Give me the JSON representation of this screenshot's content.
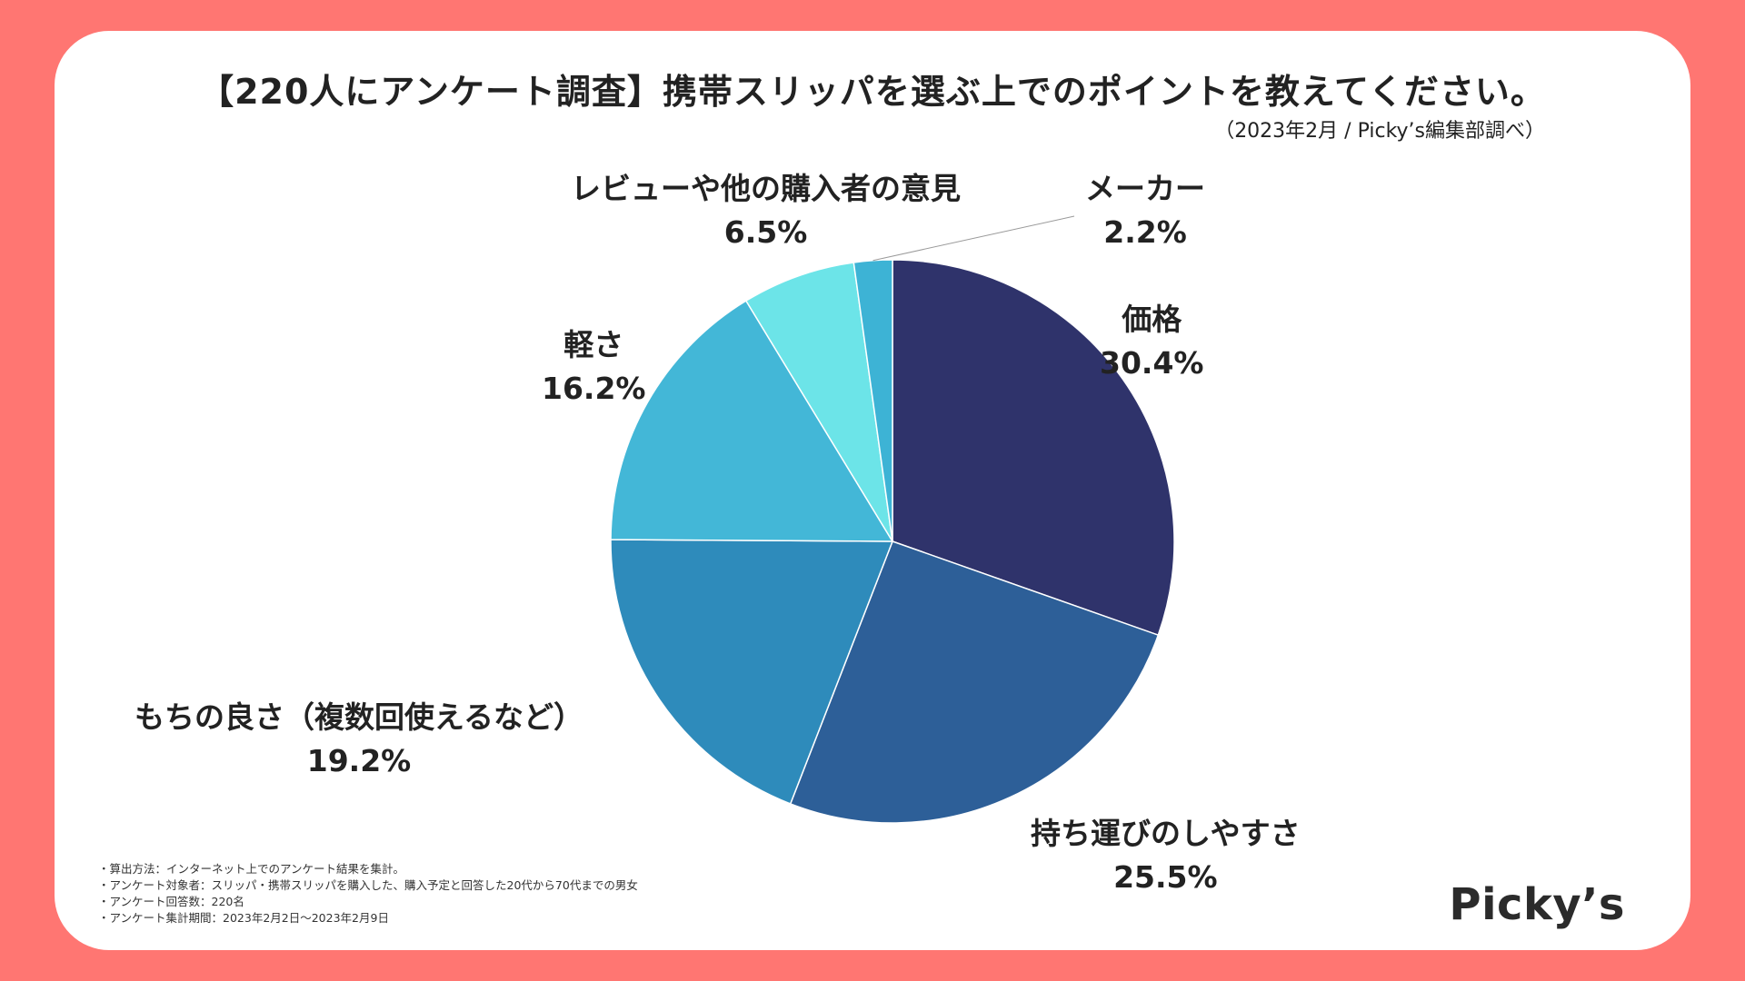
{
  "title": "【220人にアンケート調査】携帯スリッパを選ぶ上でのポイントを教えてください。",
  "subtitle": "（2023年2月 / Picky’s編集部調べ）",
  "chart_data": {
    "type": "pie",
    "title": "【220人にアンケート調査】携帯スリッパを選ぶ上でのポイントを教えてください。",
    "slices": [
      {
        "label": "価格",
        "value": 30.4,
        "value_text": "30.4%",
        "color": "#2f336b"
      },
      {
        "label": "持ち運びのしやすさ",
        "value": 25.5,
        "value_text": "25.5%",
        "color": "#2d5f98"
      },
      {
        "label": "もちの良さ（複数回使えるなど）",
        "value": 19.2,
        "value_text": "19.2%",
        "color": "#2e8bbb"
      },
      {
        "label": "軽さ",
        "value": 16.2,
        "value_text": "16.2%",
        "color": "#43b7d7"
      },
      {
        "label": "レビューや他の購入者の意見",
        "value": 6.5,
        "value_text": "6.5%",
        "color": "#6ce4e8"
      },
      {
        "label": "メーカー",
        "value": 2.2,
        "value_text": "2.2%",
        "color": "#3db3d5"
      }
    ]
  },
  "notes": [
    "算出方法：インターネット上でのアンケート結果を集計。",
    "アンケート対象者：スリッパ・携帯スリッパを購入した、購入予定と回答した20代から70代までの男女",
    "アンケート回答数：220名",
    "アンケート集計期間：2023年2月2日〜2023年2月9日"
  ],
  "logo": "Picky’s"
}
